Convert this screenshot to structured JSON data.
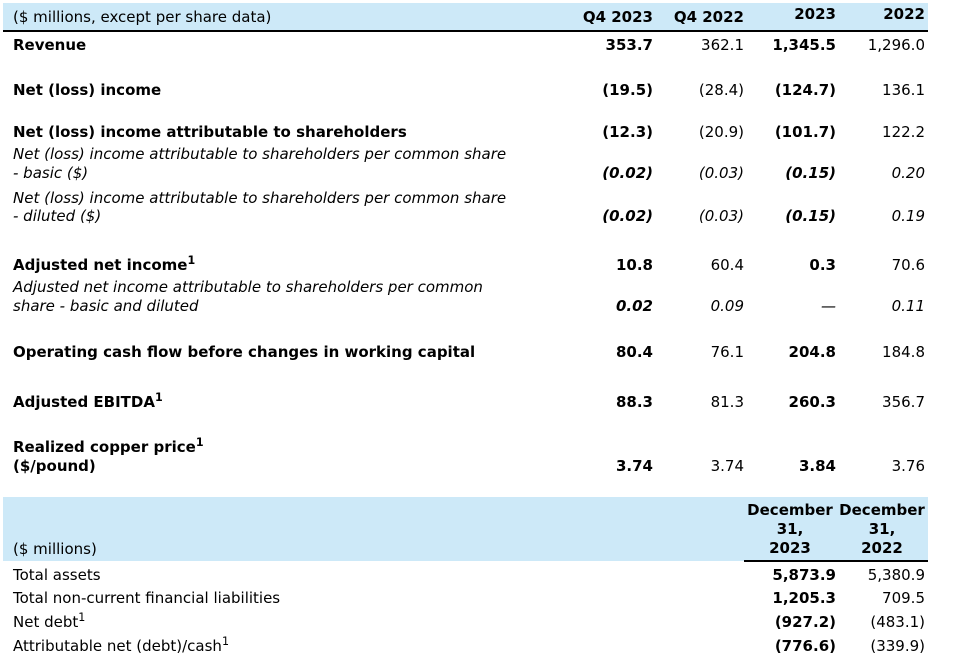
{
  "colors": {
    "header_band_bg": "#cde9f8",
    "border": "#000000",
    "text": "#000000"
  },
  "table1": {
    "caption": "($ millions, except per share data)",
    "columns": [
      "Q4 2023",
      "Q4 2022",
      "2023",
      "2022"
    ],
    "bold_columns": [
      0,
      2
    ],
    "rows": [
      {
        "lines": [
          {
            "t": "Revenue"
          }
        ],
        "label_style": "bold",
        "gap": 4,
        "values": [
          "353.7",
          "362.1",
          "1,345.5",
          "1,296.0"
        ]
      },
      {
        "lines": [
          {
            "t": "Net (loss) income"
          }
        ],
        "label_style": "bold",
        "gap": 26,
        "values": [
          "(19.5)",
          "(28.4)",
          "(124.7)",
          "136.1"
        ]
      },
      {
        "lines": [
          {
            "t": "Net (loss) income attributable to shareholders"
          }
        ],
        "label_style": "bold",
        "gap": 24,
        "values": [
          "(12.3)",
          "(20.9)",
          "(101.7)",
          "122.2"
        ]
      },
      {
        "lines": [
          {
            "t": "Net (loss) income attributable to shareholders per common share"
          },
          {
            "t": "- basic ($)"
          }
        ],
        "label_style": "italic",
        "value_style": "italic",
        "gap": 3,
        "values": [
          "(0.02)",
          "(0.03)",
          "(0.15)",
          "0.20"
        ]
      },
      {
        "lines": [
          {
            "t": "Net (loss) income attributable to shareholders per common share"
          },
          {
            "t": "- diluted ($)"
          }
        ],
        "label_style": "italic",
        "value_style": "italic",
        "gap": 6,
        "values": [
          "(0.02)",
          "(0.03)",
          "(0.15)",
          "0.19"
        ]
      },
      {
        "lines": [
          {
            "t": "Adjusted net income",
            "sup": "1"
          }
        ],
        "label_style": "bold",
        "gap": 30,
        "values": [
          "10.8",
          "60.4",
          "0.3",
          "70.6"
        ]
      },
      {
        "lines": [
          {
            "t": "Adjusted net income attributable to shareholders per common"
          },
          {
            "t": "share - basic and diluted"
          }
        ],
        "label_style": "italic",
        "value_style": "italic",
        "gap": 3,
        "values": [
          "0.02",
          "0.09",
          "—",
          "0.11"
        ]
      },
      {
        "lines": [
          {
            "t": "Operating cash flow before changes in working capital"
          }
        ],
        "label_style": "bold",
        "gap": 28,
        "values": [
          "80.4",
          "76.1",
          "204.8",
          "184.8"
        ]
      },
      {
        "lines": [
          {
            "t": "Adjusted EBITDA",
            "sup": "1"
          }
        ],
        "label_style": "bold",
        "gap": 31,
        "values": [
          "88.3",
          "81.3",
          "260.3",
          "356.7"
        ]
      },
      {
        "lines": [
          {
            "t": "Realized copper price",
            "sup": "1"
          },
          {
            "t": "($/pound)"
          }
        ],
        "label_style": "bold",
        "gap": 26,
        "values": [
          "3.74",
          "3.74",
          "3.84",
          "3.76"
        ]
      }
    ]
  },
  "table2": {
    "caption": "($ millions)",
    "columns": [
      {
        "lines": [
          "December",
          "31,",
          "2023"
        ]
      },
      {
        "lines": [
          "December",
          "31,",
          "2022"
        ]
      }
    ],
    "bold_columns": [
      0
    ],
    "rows": [
      {
        "lines": [
          {
            "t": "Total assets"
          }
        ],
        "gap": 4,
        "values": [
          "5,873.9",
          "5,380.9"
        ]
      },
      {
        "lines": [
          {
            "t": "Total non-current financial liabilities"
          }
        ],
        "gap": 5,
        "values": [
          "1,205.3",
          "709.5"
        ]
      },
      {
        "lines": [
          {
            "t": "Net debt",
            "sup": "1"
          }
        ],
        "gap": 5,
        "values": [
          "(927.2)",
          "(483.1)"
        ]
      },
      {
        "lines": [
          {
            "t": "Attributable net (debt)/cash",
            "sup": "1"
          }
        ],
        "gap": 5,
        "values": [
          "(776.6)",
          "(339.9)"
        ]
      }
    ]
  }
}
